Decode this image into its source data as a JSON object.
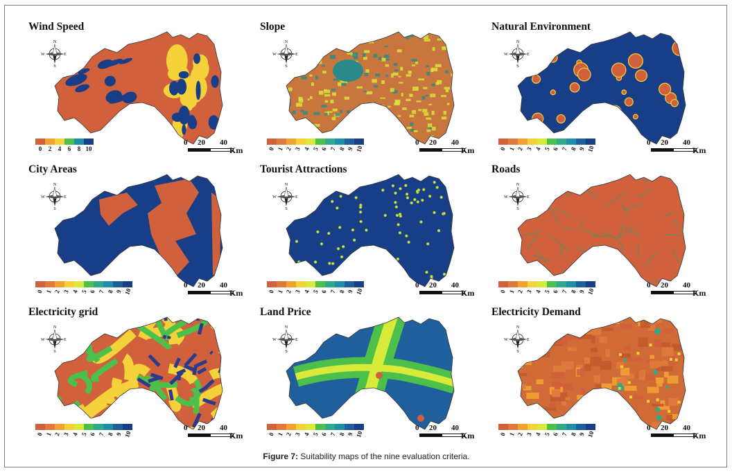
{
  "figure": {
    "caption_label": "Figure 7:",
    "caption_text": " Suitability maps of the nine evaluation criteria."
  },
  "compass": {
    "n": "N",
    "s": "S",
    "e": "E",
    "w": "W"
  },
  "scale_bar": {
    "zero": "0",
    "mid": "20",
    "max": "40",
    "unit": "Km"
  },
  "palette": [
    "#d1603c",
    "#e07a3c",
    "#f0a333",
    "#f5d23a",
    "#d8ea3a",
    "#4cc04a",
    "#2fa98a",
    "#1f8fa6",
    "#1f5f9c",
    "#173e86"
  ],
  "panels": [
    {
      "title": "Wind Speed",
      "ticks": [
        "0",
        "2",
        "4",
        "6",
        "8",
        "10"
      ],
      "legend_colors": [
        "#d1603c",
        "#f0a333",
        "#f5d23a",
        "#4cc04a",
        "#1f8fa6",
        "#173e86"
      ],
      "base": "#d1603c",
      "accent": "#173e86",
      "highlight": "#f5d23a",
      "pattern": "wind"
    },
    {
      "title": "Slope",
      "ticks": [
        "0",
        "1",
        "2",
        "3",
        "4",
        "5",
        "6",
        "7",
        "8",
        "9",
        "10"
      ],
      "legend_colors": [
        "#d1603c",
        "#e07a3c",
        "#f0a333",
        "#f5d23a",
        "#d8ea3a",
        "#4cc04a",
        "#2fa98a",
        "#1f8fa6",
        "#1f5f9c",
        "#173e86"
      ],
      "base": "#c9763e",
      "accent": "#2a8a8a",
      "highlight": "#d8ea3a",
      "pattern": "slope"
    },
    {
      "title": "Natural Environment",
      "ticks": [
        "0",
        "1",
        "2",
        "3",
        "4",
        "5",
        "6",
        "7",
        "8",
        "9",
        "10"
      ],
      "legend_colors": [
        "#d1603c",
        "#e07a3c",
        "#f0a333",
        "#f5d23a",
        "#d8ea3a",
        "#4cc04a",
        "#2fa98a",
        "#1f8fa6",
        "#1f5f9c",
        "#173e86"
      ],
      "base": "#173e86",
      "accent": "#d1603c",
      "highlight": "#f5d23a",
      "pattern": "blobs"
    },
    {
      "title": "City Areas",
      "ticks": [
        "0",
        "1",
        "2",
        "3",
        "4",
        "5",
        "6",
        "7",
        "8",
        "9",
        "10"
      ],
      "legend_colors": [
        "#d1603c",
        "#e07a3c",
        "#f0a333",
        "#f5d23a",
        "#d8ea3a",
        "#4cc04a",
        "#2fa98a",
        "#1f8fa6",
        "#1f5f9c",
        "#173e86"
      ],
      "base": "#173e86",
      "accent": "#d1603c",
      "highlight": "#e07a3c",
      "pattern": "city"
    },
    {
      "title": "Tourist Attractions",
      "ticks": [
        "0",
        "1",
        "2",
        "3",
        "4",
        "5",
        "6",
        "7",
        "8",
        "9",
        "10"
      ],
      "legend_colors": [
        "#d1603c",
        "#e07a3c",
        "#f0a333",
        "#f5d23a",
        "#d8ea3a",
        "#4cc04a",
        "#2fa98a",
        "#1f8fa6",
        "#1f5f9c",
        "#173e86"
      ],
      "base": "#173e86",
      "accent": "#9bb84a",
      "highlight": "#d8ea3a",
      "pattern": "dots"
    },
    {
      "title": "Roads",
      "ticks": [
        "0",
        "1",
        "2",
        "3",
        "4",
        "5",
        "6",
        "7",
        "8",
        "9",
        "10"
      ],
      "legend_colors": [
        "#d1603c",
        "#e07a3c",
        "#f0a333",
        "#f5d23a",
        "#d8ea3a",
        "#4cc04a",
        "#2fa98a",
        "#1f8fa6",
        "#1f5f9c",
        "#173e86"
      ],
      "base": "#d1603c",
      "accent": "#3b9a6e",
      "highlight": "#e07a3c",
      "pattern": "roads"
    },
    {
      "title": "Electricity grid",
      "ticks": [
        "0",
        "1",
        "2",
        "3",
        "4",
        "5",
        "6",
        "7",
        "8",
        "9",
        "10"
      ],
      "legend_colors": [
        "#d1603c",
        "#e07a3c",
        "#f0a333",
        "#f5d23a",
        "#d8ea3a",
        "#4cc04a",
        "#2fa98a",
        "#1f8fa6",
        "#1f5f9c",
        "#173e86"
      ],
      "base": "#d1603c",
      "accent": "#2b3a8a",
      "highlight": "#4cc04a",
      "pattern": "grid"
    },
    {
      "title": "Land Price",
      "ticks": [
        "0",
        "1",
        "2",
        "3",
        "4",
        "5",
        "6",
        "7",
        "8",
        "9",
        "10"
      ],
      "legend_colors": [
        "#d1603c",
        "#e07a3c",
        "#f0a333",
        "#f5d23a",
        "#d8ea3a",
        "#4cc04a",
        "#2fa98a",
        "#1f8fa6",
        "#1f5f9c",
        "#173e86"
      ],
      "base": "#1f5f9c",
      "accent": "#4cc04a",
      "highlight": "#d8ea3a",
      "pattern": "price"
    },
    {
      "title": "Electricity Demand",
      "ticks": [
        "0",
        "1",
        "2",
        "3",
        "4",
        "5",
        "6",
        "7",
        "8",
        "9",
        "10"
      ],
      "legend_colors": [
        "#d1603c",
        "#e07a3c",
        "#f0a333",
        "#f5d23a",
        "#d8ea3a",
        "#4cc04a",
        "#2fa98a",
        "#1f8fa6",
        "#1f5f9c",
        "#173e86"
      ],
      "base": "#d06a36",
      "accent": "#e8a030",
      "highlight": "#2fa98a",
      "pattern": "demand"
    }
  ]
}
